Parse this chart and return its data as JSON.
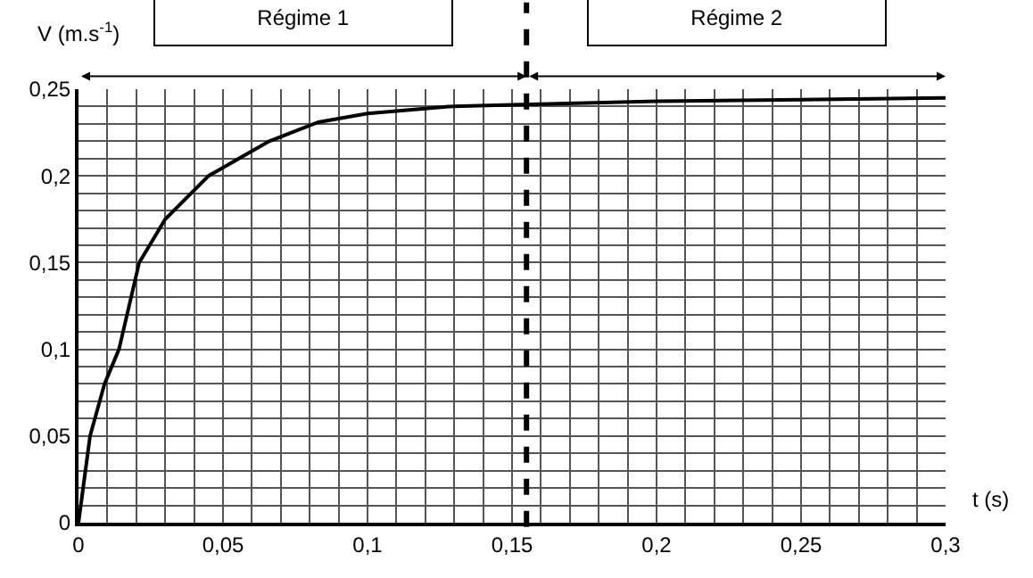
{
  "chart_data": {
    "type": "line",
    "xlabel": "t (s)",
    "ylabel": "V (m.s$^{-1}$)",
    "x": [
      0,
      0.004,
      0.009,
      0.014,
      0.021,
      0.03,
      0.045,
      0.066,
      0.083,
      0.1,
      0.128,
      0.15,
      0.2,
      0.25,
      0.3
    ],
    "series": [
      {
        "color": "#000000",
        "values": [
          0,
          0.05,
          0.08,
          0.1,
          0.15,
          0.175,
          0.2,
          0.22,
          0.231,
          0.236,
          0.24,
          0.241,
          0.243,
          0.244,
          0.245
        ]
      }
    ],
    "xlim": [
      0,
      0.3
    ],
    "ylim": [
      0,
      0.25
    ],
    "xticks": [
      {
        "value": 0,
        "label": "0"
      },
      {
        "value": 0.01,
        "label": null
      },
      {
        "value": 0.02,
        "label": null
      },
      {
        "value": 0.03,
        "label": null
      },
      {
        "value": 0.04,
        "label": null
      },
      {
        "value": 0.05,
        "label": "0,05"
      },
      {
        "value": 0.06,
        "label": null
      },
      {
        "value": 0.07,
        "label": null
      },
      {
        "value": 0.08,
        "label": null
      },
      {
        "value": 0.09,
        "label": null
      },
      {
        "value": 0.1,
        "label": "0,1"
      },
      {
        "value": 0.11,
        "label": null
      },
      {
        "value": 0.12,
        "label": null
      },
      {
        "value": 0.13,
        "label": null
      },
      {
        "value": 0.14,
        "label": null
      },
      {
        "value": 0.15,
        "label": "0,15"
      },
      {
        "value": 0.16,
        "label": null
      },
      {
        "value": 0.17,
        "label": null
      },
      {
        "value": 0.18,
        "label": null
      },
      {
        "value": 0.19,
        "label": null
      },
      {
        "value": 0.2,
        "label": "0,2"
      },
      {
        "value": 0.21,
        "label": null
      },
      {
        "value": 0.22,
        "label": null
      },
      {
        "value": 0.23,
        "label": null
      },
      {
        "value": 0.24,
        "label": null
      },
      {
        "value": 0.25,
        "label": "0,25"
      },
      {
        "value": 0.26,
        "label": null
      },
      {
        "value": 0.27,
        "label": null
      },
      {
        "value": 0.28,
        "label": null
      },
      {
        "value": 0.29,
        "label": null
      },
      {
        "value": 0.3,
        "label": "0,3"
      }
    ],
    "yticks": [
      {
        "value": 0,
        "label": "0"
      },
      {
        "value": 0.01,
        "label": null
      },
      {
        "value": 0.02,
        "label": null
      },
      {
        "value": 0.03,
        "label": null
      },
      {
        "value": 0.04,
        "label": null
      },
      {
        "value": 0.05,
        "label": "0,05"
      },
      {
        "value": 0.06,
        "label": null
      },
      {
        "value": 0.07,
        "label": null
      },
      {
        "value": 0.08,
        "label": null
      },
      {
        "value": 0.09,
        "label": null
      },
      {
        "value": 0.1,
        "label": "0,1"
      },
      {
        "value": 0.11,
        "label": null
      },
      {
        "value": 0.12,
        "label": null
      },
      {
        "value": 0.13,
        "label": null
      },
      {
        "value": 0.14,
        "label": null
      },
      {
        "value": 0.15,
        "label": "0,15"
      },
      {
        "value": 0.16,
        "label": null
      },
      {
        "value": 0.17,
        "label": null
      },
      {
        "value": 0.18,
        "label": null
      },
      {
        "value": 0.19,
        "label": null
      },
      {
        "value": 0.2,
        "label": "0,2"
      },
      {
        "value": 0.21,
        "label": null
      },
      {
        "value": 0.22,
        "label": null
      },
      {
        "value": 0.23,
        "label": null
      },
      {
        "value": 0.24,
        "label": null
      },
      {
        "value": 0.25,
        "label": "0,25"
      }
    ],
    "grid": true,
    "legend": false,
    "marker": "none",
    "line_style": "solid",
    "ref_lines": [
      {
        "axis": "x",
        "value": 0.155,
        "color": "#000000",
        "line_style": "dashed"
      }
    ],
    "annotations": [
      "Régime 1",
      "Régime 2"
    ]
  }
}
